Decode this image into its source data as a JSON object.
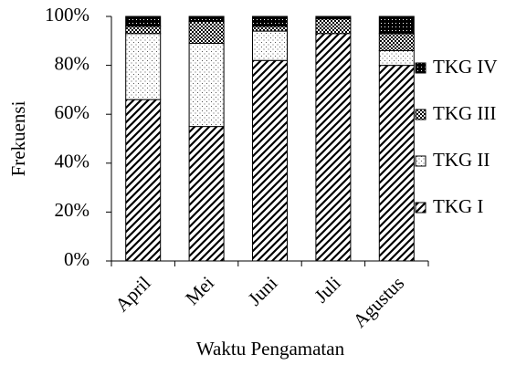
{
  "chart_data": {
    "type": "stacked-bar",
    "x_label": "Waktu Pengamatan",
    "y_label": "Frekuensi",
    "categories": [
      "April",
      "Mei",
      "Juni",
      "Juli",
      "Agustus"
    ],
    "series": [
      {
        "name": "TKG I",
        "color": "#000000",
        "pattern": "hatch",
        "values": [
          66,
          55,
          82,
          93,
          80
        ]
      },
      {
        "name": "TKG II",
        "color": "#000000",
        "pattern": "dots",
        "values": [
          27,
          34,
          12,
          0,
          6
        ]
      },
      {
        "name": "TKG III",
        "color": "#000000",
        "pattern": "checker",
        "values": [
          3,
          9,
          2,
          6,
          7
        ]
      },
      {
        "name": "TKG IV",
        "color": "#000000",
        "pattern": "dense",
        "values": [
          4,
          2,
          4,
          1,
          7
        ]
      }
    ],
    "ylim": [
      0,
      100
    ],
    "yticks": [
      {
        "value": 0,
        "label": "0%"
      },
      {
        "value": 20,
        "label": "20%"
      },
      {
        "value": 40,
        "label": "40%"
      },
      {
        "value": 60,
        "label": "60%"
      },
      {
        "value": 80,
        "label": "80%"
      },
      {
        "value": 100,
        "label": "100%"
      }
    ],
    "legend": "right",
    "legend_order": "reversed"
  }
}
